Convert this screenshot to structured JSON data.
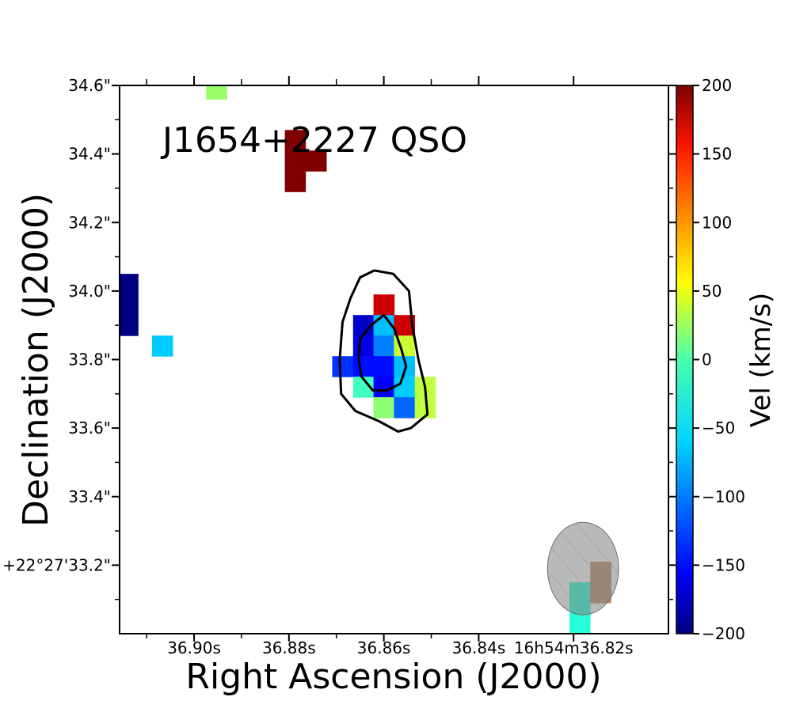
{
  "chart_data": {
    "type": "heatmap",
    "title": "J1654+2227 QSO",
    "xlabel": "Right Ascension (J2000)",
    "ylabel": "Declination (J2000)",
    "x_ticks": [
      {
        "value": 36.9,
        "label": "36.90s"
      },
      {
        "value": 36.88,
        "label": "36.88s"
      },
      {
        "value": 36.86,
        "label": "36.86s"
      },
      {
        "value": 36.84,
        "label": "36.84s"
      },
      {
        "value": 36.82,
        "label": "16h54m36.82s"
      }
    ],
    "y_ticks": [
      {
        "value": 34.6,
        "label": "34.6\""
      },
      {
        "value": 34.4,
        "label": "34.4\""
      },
      {
        "value": 34.2,
        "label": "34.2\""
      },
      {
        "value": 34.0,
        "label": "34.0\""
      },
      {
        "value": 33.8,
        "label": "33.8\""
      },
      {
        "value": 33.6,
        "label": "33.6\""
      },
      {
        "value": 33.4,
        "label": "33.4\""
      },
      {
        "value": 33.2,
        "label": "+22°27'33.2\""
      }
    ],
    "xlim": [
      36.9157,
      36.8
    ],
    "ylim": [
      33.0,
      34.6
    ],
    "colorbar": {
      "label": "Vel (km/s)",
      "vmin": -200,
      "vmax": 200,
      "ticks": [
        {
          "value": 200,
          "label": "200"
        },
        {
          "value": 150,
          "label": "150"
        },
        {
          "value": 100,
          "label": "100"
        },
        {
          "value": 50,
          "label": "50"
        },
        {
          "value": 0,
          "label": "0"
        },
        {
          "value": -50,
          "label": "−50"
        },
        {
          "value": -100,
          "label": "−100"
        },
        {
          "value": -150,
          "label": "−150"
        },
        {
          "value": -200,
          "label": "−200"
        }
      ]
    },
    "pixel_size": {
      "ra_s": 0.00435,
      "dec_arcsec": 0.06
    },
    "pixels": [
      {
        "ra": 36.8953,
        "dec": 34.59,
        "vel": 10
      },
      {
        "ra": 36.8787,
        "dec": 34.44,
        "vel": 200
      },
      {
        "ra": 36.8787,
        "dec": 34.38,
        "vel": 200
      },
      {
        "ra": 36.8787,
        "dec": 34.32,
        "vel": 200
      },
      {
        "ra": 36.8743,
        "dec": 34.38,
        "vel": 200
      },
      {
        "ra": 36.914,
        "dec": 34.02,
        "vel": 200,
        "vel_sign": -1
      },
      {
        "ra": 36.914,
        "dec": 33.96,
        "vel": -200
      },
      {
        "ra": 36.914,
        "dec": 33.9,
        "vel": -200
      },
      {
        "ra": 36.9067,
        "dec": 33.84,
        "vel": -70
      },
      {
        "ra": 36.86,
        "dec": 33.96,
        "vel": 170
      },
      {
        "ra": 36.8643,
        "dec": 33.9,
        "vel": -170
      },
      {
        "ra": 36.86,
        "dec": 33.9,
        "vel": -75
      },
      {
        "ra": 36.8557,
        "dec": 33.9,
        "vel": 170
      },
      {
        "ra": 36.8643,
        "dec": 33.84,
        "vel": -160
      },
      {
        "ra": 36.86,
        "dec": 33.84,
        "vel": -100
      },
      {
        "ra": 36.8557,
        "dec": 33.84,
        "vel": 30
      },
      {
        "ra": 36.8687,
        "dec": 33.78,
        "vel": -130
      },
      {
        "ra": 36.8643,
        "dec": 33.78,
        "vel": -145
      },
      {
        "ra": 36.86,
        "dec": 33.78,
        "vel": -145
      },
      {
        "ra": 36.8557,
        "dec": 33.78,
        "vel": -75
      },
      {
        "ra": 36.8643,
        "dec": 33.72,
        "vel": -25
      },
      {
        "ra": 36.86,
        "dec": 33.72,
        "vel": -150
      },
      {
        "ra": 36.8557,
        "dec": 33.72,
        "vel": -70
      },
      {
        "ra": 36.8513,
        "dec": 33.72,
        "vel": 25
      },
      {
        "ra": 36.86,
        "dec": 33.66,
        "vel": 5
      },
      {
        "ra": 36.8557,
        "dec": 33.66,
        "vel": -110
      },
      {
        "ra": 36.8513,
        "dec": 33.66,
        "vel": 25
      },
      {
        "ra": 36.8187,
        "dec": 33.12,
        "vel": -35
      },
      {
        "ra": 36.8187,
        "dec": 33.06,
        "vel": -35
      },
      {
        "ra": 36.8187,
        "dec": 33.03,
        "vel": -35
      },
      {
        "ra": 36.8143,
        "dec": 33.18,
        "vel": 110
      },
      {
        "ra": 36.8143,
        "dec": 33.12,
        "vel": 110
      }
    ],
    "contours": [
      [
        [
          36.862,
          34.06
        ],
        [
          36.858,
          34.05
        ],
        [
          36.8547,
          34.0
        ],
        [
          36.854,
          33.9
        ],
        [
          36.8527,
          33.8
        ],
        [
          36.8513,
          33.72
        ],
        [
          36.8508,
          33.64
        ],
        [
          36.8543,
          33.6
        ],
        [
          36.857,
          33.59
        ],
        [
          36.861,
          33.62
        ],
        [
          36.866,
          33.65
        ],
        [
          36.869,
          33.7
        ],
        [
          36.8693,
          33.8
        ],
        [
          36.8687,
          33.91
        ],
        [
          36.867,
          33.98
        ],
        [
          36.865,
          34.04
        ],
        [
          36.862,
          34.06
        ]
      ],
      [
        [
          36.86,
          33.93
        ],
        [
          36.8578,
          33.89
        ],
        [
          36.8563,
          33.83
        ],
        [
          36.8553,
          33.78
        ],
        [
          36.8565,
          33.73
        ],
        [
          36.8593,
          33.71
        ],
        [
          36.8623,
          33.71
        ],
        [
          36.8647,
          33.75
        ],
        [
          36.8653,
          33.8
        ],
        [
          36.865,
          33.86
        ],
        [
          36.8627,
          33.9
        ],
        [
          36.86,
          33.93
        ]
      ]
    ],
    "beam": {
      "ra": 36.818,
      "dec": 33.19,
      "width_s": 0.015,
      "height_arcsec": 0.27
    }
  }
}
